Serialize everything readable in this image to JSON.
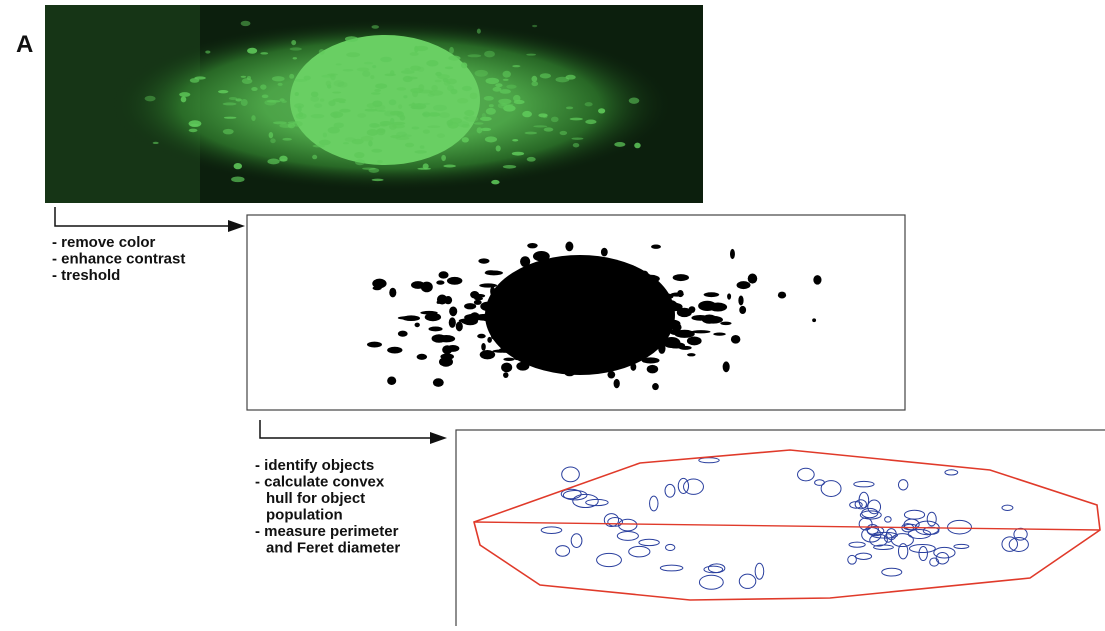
{
  "panel_label": "A",
  "steps": [
    {
      "lines": [
        "- remove color",
        "- enhance contrast",
        "- treshold"
      ]
    },
    {
      "lines": [
        "- identify objects",
        "- calculate convex",
        "hull for object",
        "population",
        "- measure perimeter",
        "and Feret diameter"
      ]
    }
  ]
}
